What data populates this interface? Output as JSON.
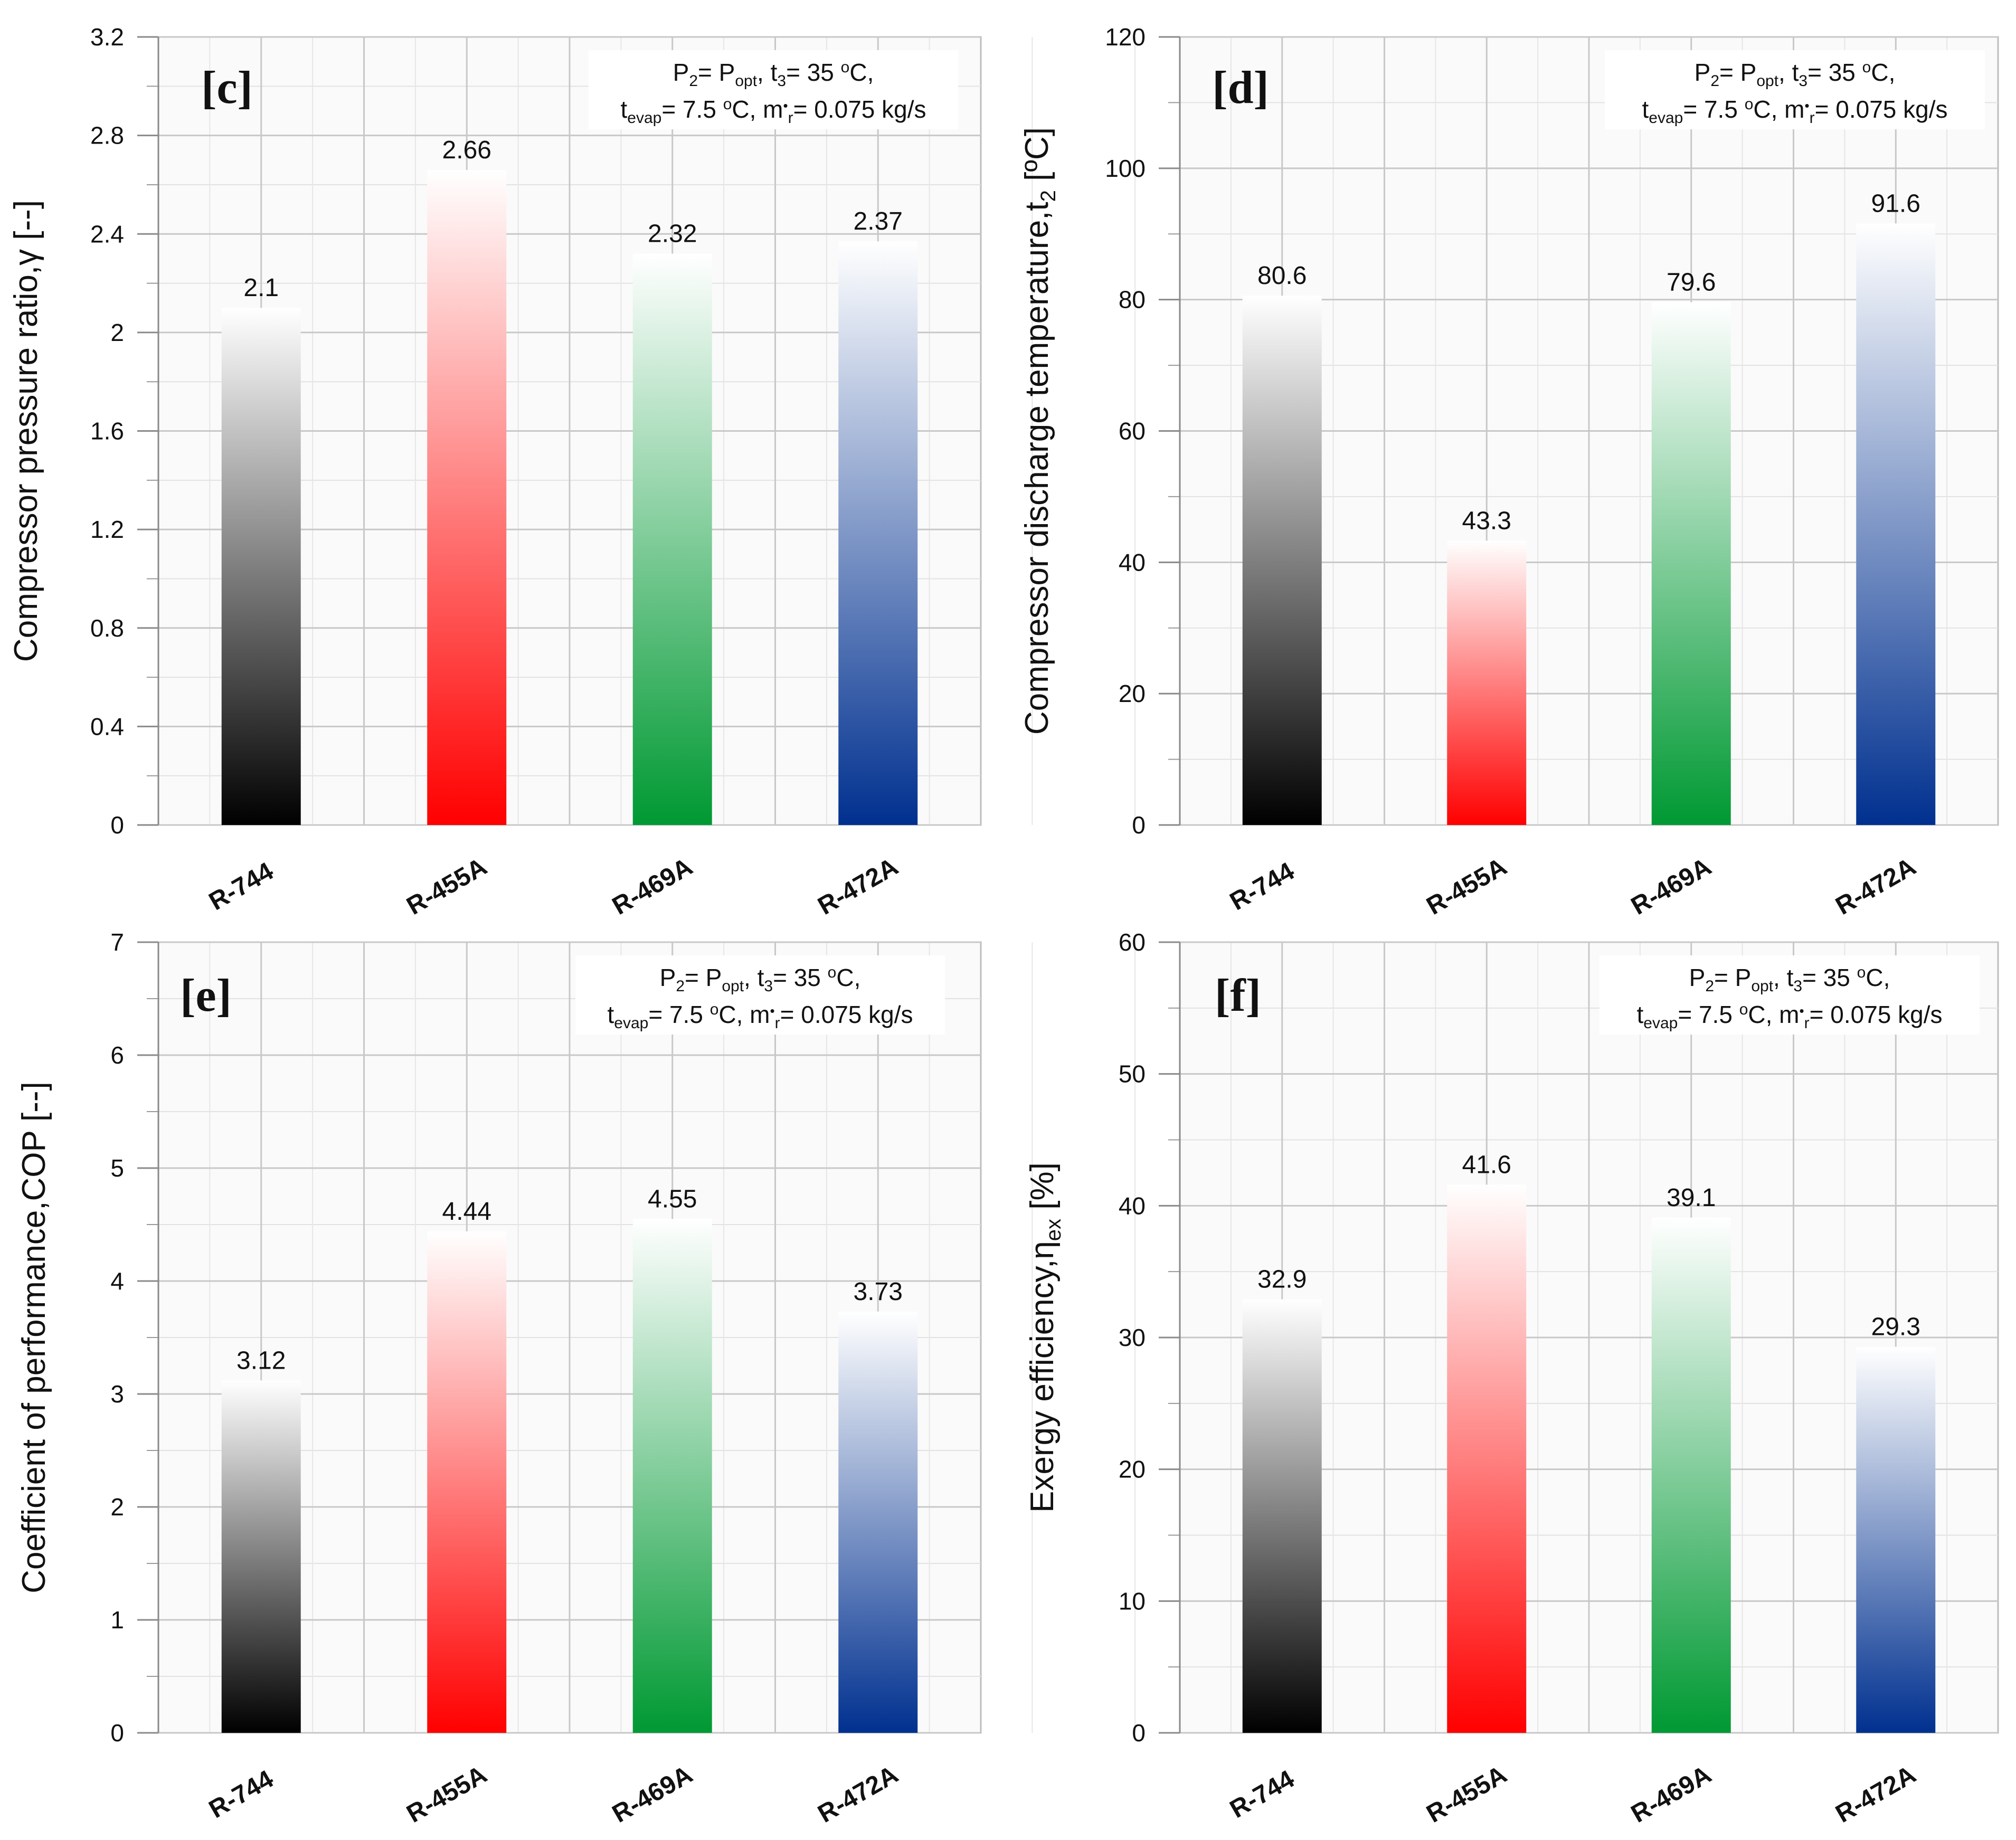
{
  "chart_data": [
    {
      "type": "bar",
      "panel_label": "[c]",
      "categories": [
        "R-744",
        "R-455A",
        "R-469A",
        "R-472A"
      ],
      "values": [
        2.1,
        2.66,
        2.32,
        2.37
      ],
      "value_labels": [
        "2.1",
        "2.66",
        "2.32",
        "2.37"
      ],
      "ylabel": "Compressor pressure ratio,γ [--]",
      "ylim": [
        0,
        3.2
      ],
      "yticks": [
        "0",
        "0.4",
        "0.8",
        "1.2",
        "1.6",
        "2",
        "2.4",
        "2.8",
        "3.2"
      ],
      "grid": true,
      "conditions": {
        "line1": {
          "p": "P",
          "p_sub": "2",
          "eq1": "= P",
          "opt_sub": "opt",
          "t3": ", t",
          "t3_sub": "3",
          "t3_val": "= 35 ",
          "o": "o",
          "c": "C,"
        },
        "line2": {
          "t": "t",
          "evap_sub": "evap",
          "val": "= 7.5 ",
          "o": "o",
          "c": "C, m",
          "dot": "•",
          "r_sub": "r",
          "flow": "= 0.075 kg/s"
        }
      }
    },
    {
      "type": "bar",
      "panel_label": "[d]",
      "categories": [
        "R-744",
        "R-455A",
        "R-469A",
        "R-472A"
      ],
      "values": [
        80.6,
        43.3,
        79.6,
        91.6
      ],
      "value_labels": [
        "80.6",
        "43.3",
        "79.6",
        "91.6"
      ],
      "ylabel": "Compressor discharge temperature,t",
      "ylabel_sub": "2",
      "ylabel_unit": " [ºC]",
      "ylim": [
        0,
        120
      ],
      "yticks": [
        "0",
        "20",
        "40",
        "60",
        "80",
        "100",
        "120"
      ],
      "grid": true,
      "conditions": {
        "line1": {
          "p": "P",
          "p_sub": "2",
          "eq1": "= P",
          "opt_sub": "opt",
          "t3": ", t",
          "t3_sub": "3",
          "t3_val": "= 35 ",
          "o": "o",
          "c": "C,"
        },
        "line2": {
          "t": "t",
          "evap_sub": "evap",
          "val": "= 7.5 ",
          "o": "o",
          "c": "C, m",
          "dot": "•",
          "r_sub": "r",
          "flow": "= 0.075 kg/s"
        }
      }
    },
    {
      "type": "bar",
      "panel_label": "[e]",
      "categories": [
        "R-744",
        "R-455A",
        "R-469A",
        "R-472A"
      ],
      "values": [
        3.12,
        4.44,
        4.55,
        3.73
      ],
      "value_labels": [
        "3.12",
        "4.44",
        "4.55",
        "3.73"
      ],
      "ylabel": "Coefficient of performance,COP [--]",
      "ylim": [
        0,
        7
      ],
      "yticks": [
        "0",
        "1",
        "2",
        "3",
        "4",
        "5",
        "6",
        "7"
      ],
      "grid": true,
      "conditions": {
        "line1": {
          "p": "P",
          "p_sub": "2",
          "eq1": "= P",
          "opt_sub": "opt",
          "t3": ", t",
          "t3_sub": "3",
          "t3_val": "= 35 ",
          "o": "o",
          "c": "C,"
        },
        "line2": {
          "t": "t",
          "evap_sub": "evap",
          "val": "= 7.5 ",
          "o": "o",
          "c": "C, m",
          "dot": "•",
          "r_sub": "r",
          "flow": "= 0.075 kg/s"
        }
      }
    },
    {
      "type": "bar",
      "panel_label": "[f]",
      "categories": [
        "R-744",
        "R-455A",
        "R-469A",
        "R-472A"
      ],
      "values": [
        32.9,
        41.6,
        39.1,
        29.3
      ],
      "value_labels": [
        "32.9",
        "41.6",
        "39.1",
        "29.3"
      ],
      "ylabel": "Exergy efficiency,η",
      "ylabel_sub": "ex",
      "ylabel_unit": " [%]",
      "ylim": [
        0,
        60
      ],
      "yticks": [
        "0",
        "10",
        "20",
        "30",
        "40",
        "50",
        "60"
      ],
      "grid": true,
      "conditions": {
        "line1": {
          "p": "P",
          "p_sub": "2",
          "eq1": "= P",
          "opt_sub": "opt",
          "t3": ", t",
          "t3_sub": "3",
          "t3_val": "= 35 ",
          "o": "o",
          "c": "C,"
        },
        "line2": {
          "t": "t",
          "evap_sub": "evap",
          "val": "= 7.5 ",
          "o": "o",
          "c": "C, m",
          "dot": "•",
          "r_sub": "r",
          "flow": "= 0.075 kg/s"
        }
      }
    }
  ],
  "series_colors": {
    "R-744": "#000000",
    "R-455A": "#ff0000",
    "R-469A": "#009933",
    "R-472A": "#00308f"
  }
}
